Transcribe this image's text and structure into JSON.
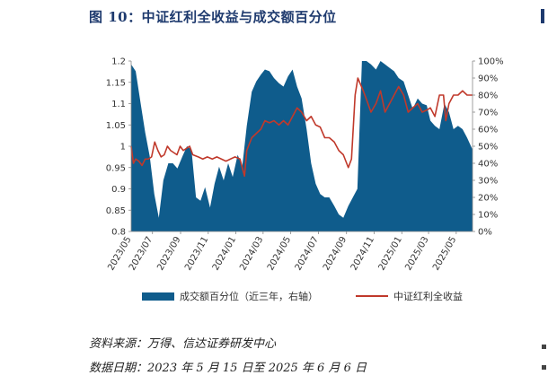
{
  "title": "图 10：中证红利全收益与成交额百分位",
  "source": "资料来源：万得、信达证券研发中心",
  "date_range": "数据日期：2023 年 5 月 15 日至 2025 年 6 月 6 日",
  "colors": {
    "area": "#0f5c8c",
    "line": "#c0392b",
    "title": "#1e3a6e"
  },
  "chart_data": {
    "type": "area",
    "x_tick_labels": [
      "2023/05",
      "2023/07",
      "2023/09",
      "2023/11",
      "2024/01",
      "2024/03",
      "2024/05",
      "2024/07",
      "2024/09",
      "2024/11",
      "2025/01",
      "2025/03",
      "2025/05"
    ],
    "left_axis": {
      "ticks": [
        "0.8",
        "0.85",
        "0.9",
        "0.95",
        "1",
        "1.05",
        "1.1",
        "1.15",
        "1.2"
      ],
      "ylim": [
        0.8,
        1.2
      ]
    },
    "right_axis": {
      "ticks": [
        "0%",
        "10%",
        "20%",
        "30%",
        "40%",
        "50%",
        "60%",
        "70%",
        "80%",
        "90%",
        "100%"
      ],
      "ylim": [
        0,
        100
      ]
    },
    "legend_position": "bottom",
    "series": [
      {
        "name": "成交额百分位（近三年，右轴）",
        "kind": "area",
        "axis": "right",
        "x": [
          "2023-05-15",
          "2023-05-25",
          "2023-06-05",
          "2023-06-15",
          "2023-06-25",
          "2023-07-05",
          "2023-07-15",
          "2023-07-25",
          "2023-08-05",
          "2023-08-15",
          "2023-08-25",
          "2023-09-05",
          "2023-09-15",
          "2023-09-25",
          "2023-10-05",
          "2023-10-15",
          "2023-10-25",
          "2023-11-05",
          "2023-11-15",
          "2023-11-25",
          "2023-12-05",
          "2023-12-15",
          "2023-12-25",
          "2024-01-05",
          "2024-01-15",
          "2024-01-25",
          "2024-02-05",
          "2024-02-15",
          "2024-02-25",
          "2024-03-05",
          "2024-03-15",
          "2024-03-25",
          "2024-04-05",
          "2024-04-15",
          "2024-04-25",
          "2024-05-05",
          "2024-05-15",
          "2024-05-25",
          "2024-06-05",
          "2024-06-15",
          "2024-06-25",
          "2024-07-05",
          "2024-07-15",
          "2024-07-25",
          "2024-08-05",
          "2024-08-15",
          "2024-08-25",
          "2024-09-05",
          "2024-09-15",
          "2024-09-25",
          "2024-10-05",
          "2024-10-15",
          "2024-10-25",
          "2024-11-05",
          "2024-11-15",
          "2024-11-25",
          "2024-12-05",
          "2024-12-15",
          "2024-12-25",
          "2025-01-05",
          "2025-01-15",
          "2025-01-25",
          "2025-02-05",
          "2025-02-15",
          "2025-02-25",
          "2025-03-05",
          "2025-03-15",
          "2025-03-25",
          "2025-04-05",
          "2025-04-15",
          "2025-04-25",
          "2025-05-05",
          "2025-05-15",
          "2025-05-25",
          "2025-06-06"
        ],
        "values": [
          98,
          94,
          75,
          58,
          44,
          22,
          8,
          30,
          40,
          40,
          37,
          44,
          50,
          48,
          20,
          18,
          26,
          14,
          28,
          38,
          30,
          40,
          32,
          45,
          38,
          62,
          82,
          88,
          92,
          95,
          94,
          90,
          87,
          85,
          91,
          95,
          85,
          78,
          60,
          40,
          28,
          22,
          20,
          20,
          15,
          10,
          8,
          15,
          20,
          25,
          100,
          100,
          98,
          95,
          100,
          98,
          96,
          94,
          90,
          88,
          80,
          72,
          78,
          75,
          74,
          65,
          62,
          60,
          75,
          70,
          60,
          62,
          60,
          55,
          48
        ]
      },
      {
        "name": "中证红利全收益",
        "kind": "line",
        "axis": "left",
        "x": [
          "2023-05-15",
          "2023-05-20",
          "2023-05-25",
          "2023-06-01",
          "2023-06-08",
          "2023-06-15",
          "2023-06-22",
          "2023-06-29",
          "2023-07-06",
          "2023-07-13",
          "2023-07-20",
          "2023-07-27",
          "2023-08-03",
          "2023-08-10",
          "2023-08-17",
          "2023-08-24",
          "2023-08-31",
          "2023-09-07",
          "2023-09-14",
          "2023-09-21",
          "2023-09-28",
          "2023-10-10",
          "2023-10-20",
          "2023-10-30",
          "2023-11-10",
          "2023-11-20",
          "2023-11-30",
          "2023-12-10",
          "2023-12-20",
          "2023-12-30",
          "2024-01-10",
          "2024-01-20",
          "2024-01-25",
          "2024-02-05",
          "2024-02-15",
          "2024-02-25",
          "2024-03-05",
          "2024-03-15",
          "2024-03-25",
          "2024-04-05",
          "2024-04-15",
          "2024-04-25",
          "2024-05-05",
          "2024-05-15",
          "2024-05-25",
          "2024-06-05",
          "2024-06-15",
          "2024-06-25",
          "2024-07-05",
          "2024-07-15",
          "2024-07-25",
          "2024-08-05",
          "2024-08-15",
          "2024-08-25",
          "2024-09-05",
          "2024-09-12",
          "2024-09-20",
          "2024-09-26",
          "2024-10-08",
          "2024-10-15",
          "2024-10-25",
          "2024-11-05",
          "2024-11-15",
          "2024-11-25",
          "2024-12-05",
          "2024-12-15",
          "2024-12-25",
          "2025-01-05",
          "2025-01-15",
          "2025-01-25",
          "2025-02-05",
          "2025-02-15",
          "2025-02-25",
          "2025-03-05",
          "2025-03-15",
          "2025-03-25",
          "2025-04-03",
          "2025-04-08",
          "2025-04-15",
          "2025-04-25",
          "2025-05-05",
          "2025-05-15",
          "2025-05-25",
          "2025-06-06"
        ],
        "values": [
          1.0,
          0.96,
          0.97,
          0.965,
          0.955,
          0.97,
          0.97,
          0.975,
          1.01,
          0.99,
          0.975,
          0.98,
          1.0,
          0.99,
          0.985,
          0.98,
          1.0,
          0.99,
          0.995,
          1.0,
          0.98,
          0.975,
          0.97,
          0.975,
          0.97,
          0.975,
          0.97,
          0.965,
          0.97,
          0.975,
          0.97,
          0.93,
          0.99,
          1.02,
          1.03,
          1.04,
          1.06,
          1.055,
          1.06,
          1.05,
          1.06,
          1.05,
          1.07,
          1.09,
          1.08,
          1.06,
          1.07,
          1.05,
          1.045,
          1.02,
          1.02,
          1.01,
          0.99,
          0.98,
          0.95,
          0.97,
          1.12,
          1.16,
          1.13,
          1.11,
          1.08,
          1.1,
          1.13,
          1.08,
          1.1,
          1.12,
          1.14,
          1.12,
          1.08,
          1.09,
          1.1,
          1.08,
          1.085,
          1.09,
          1.07,
          1.12,
          1.12,
          1.06,
          1.1,
          1.12,
          1.12,
          1.13,
          1.12,
          1.12
        ]
      }
    ]
  }
}
